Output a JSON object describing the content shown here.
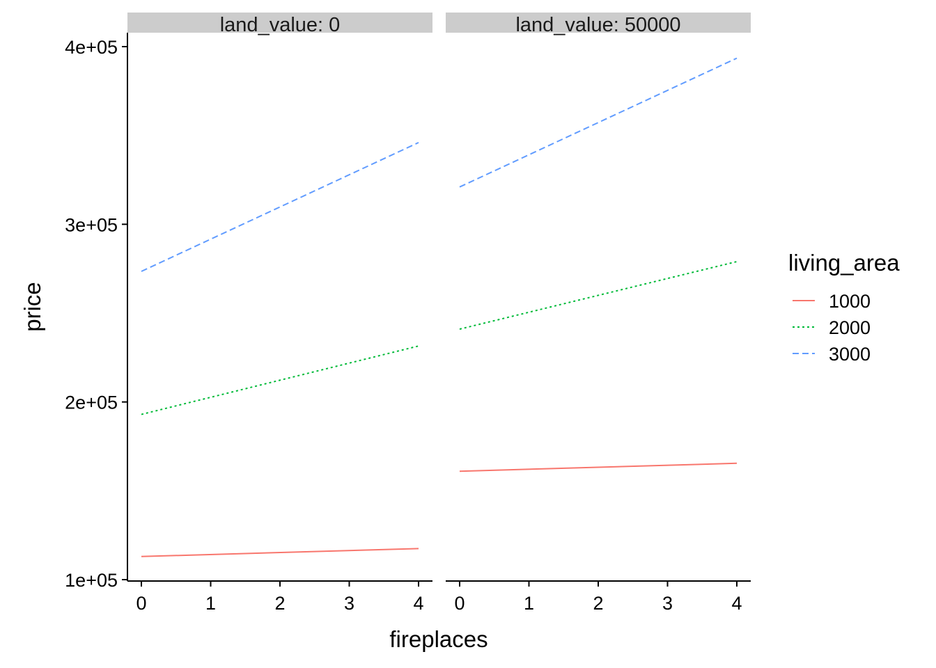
{
  "chart_data": {
    "type": "line",
    "xlabel": "fireplaces",
    "ylabel": "price",
    "xlim": [
      0,
      4
    ],
    "ylim": [
      100000,
      400000
    ],
    "x_ticks": [
      0,
      1,
      2,
      3,
      4
    ],
    "x_tick_labels": [
      "0",
      "1",
      "2",
      "3",
      "4"
    ],
    "y_ticks": [
      100000,
      200000,
      300000,
      400000
    ],
    "y_tick_labels": [
      "1e+05",
      "2e+05",
      "3e+05",
      "4e+05"
    ],
    "grid": false,
    "legend": {
      "title": "living_area",
      "position": "right",
      "entries": [
        {
          "label": "1000",
          "color": "#F8766D",
          "dash": "solid"
        },
        {
          "label": "2000",
          "color": "#00BA38",
          "dash": "dotted"
        },
        {
          "label": "3000",
          "color": "#619CFF",
          "dash": "dashed"
        }
      ]
    },
    "panels": [
      {
        "strip": "land_value: 0",
        "series": [
          {
            "name": "1000",
            "x": [
              0,
              4
            ],
            "y": [
              113000,
              117500
            ]
          },
          {
            "name": "2000",
            "x": [
              0,
              4
            ],
            "y": [
              193000,
              231500
            ]
          },
          {
            "name": "3000",
            "x": [
              0,
              4
            ],
            "y": [
              273500,
              346000
            ]
          }
        ]
      },
      {
        "strip": "land_value: 50000",
        "series": [
          {
            "name": "1000",
            "x": [
              0,
              4
            ],
            "y": [
              161000,
              165500
            ]
          },
          {
            "name": "2000",
            "x": [
              0,
              4
            ],
            "y": [
              241000,
              279000
            ]
          },
          {
            "name": "3000",
            "x": [
              0,
              4
            ],
            "y": [
              321000,
              393500
            ]
          }
        ]
      }
    ]
  }
}
